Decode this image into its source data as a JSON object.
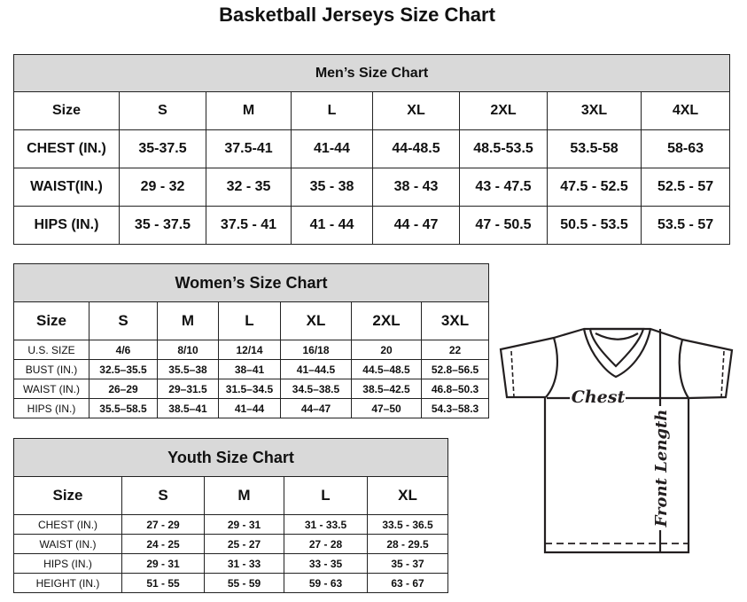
{
  "title": "Basketball Jerseys Size Chart",
  "men": {
    "title": "Men’s Size Chart",
    "header": [
      "Size",
      "S",
      "M",
      "L",
      "XL",
      "2XL",
      "3XL",
      "4XL"
    ],
    "rows": [
      [
        "CHEST (IN.)",
        "35-37.5",
        "37.5-41",
        "41-44",
        "44-48.5",
        "48.5-53.5",
        "53.5-58",
        "58-63"
      ],
      [
        "WAIST(IN.)",
        "29 - 32",
        "32 - 35",
        "35 - 38",
        "38 - 43",
        "43 - 47.5",
        "47.5 - 52.5",
        "52.5 - 57"
      ],
      [
        "HIPS (IN.)",
        "35 - 37.5",
        "37.5 - 41",
        "41 - 44",
        "44 - 47",
        "47 - 50.5",
        "50.5 - 53.5",
        "53.5 - 57"
      ]
    ]
  },
  "women": {
    "title": "Women’s Size Chart",
    "header": [
      "Size",
      "S",
      "M",
      "L",
      "XL",
      "2XL",
      "3XL"
    ],
    "rows": [
      [
        "U.S. SIZE",
        "4/6",
        "8/10",
        "12/14",
        "16/18",
        "20",
        "22"
      ],
      [
        "BUST (IN.)",
        "32.5–35.5",
        "35.5–38",
        "38–41",
        "41–44.5",
        "44.5–48.5",
        "52.8–56.5"
      ],
      [
        "WAIST (IN.)",
        "26–29",
        "29–31.5",
        "31.5–34.5",
        "34.5–38.5",
        "38.5–42.5",
        "46.8–50.3"
      ],
      [
        "HIPS (IN.)",
        "35.5–58.5",
        "38.5–41",
        "41–44",
        "44–47",
        "47–50",
        "54.3–58.3"
      ]
    ]
  },
  "youth": {
    "title": "Youth Size Chart",
    "header": [
      "Size",
      "S",
      "M",
      "L",
      "XL"
    ],
    "rows": [
      [
        "CHEST (IN.)",
        "27 - 29",
        "29 - 31",
        "31 - 33.5",
        "33.5 - 36.5"
      ],
      [
        "WAIST (IN.)",
        "24 - 25",
        "25 - 27",
        "27 - 28",
        "28 - 29.5"
      ],
      [
        "HIPS (IN.)",
        "29 - 31",
        "31 - 33",
        "33 - 35",
        "35 - 37"
      ],
      [
        "HEIGHT (IN.)",
        "51 - 55",
        "55 - 59",
        "59 - 63",
        "63 - 67"
      ]
    ]
  },
  "diagram": {
    "chest_label": "Chest",
    "length_label": "Front Length"
  }
}
